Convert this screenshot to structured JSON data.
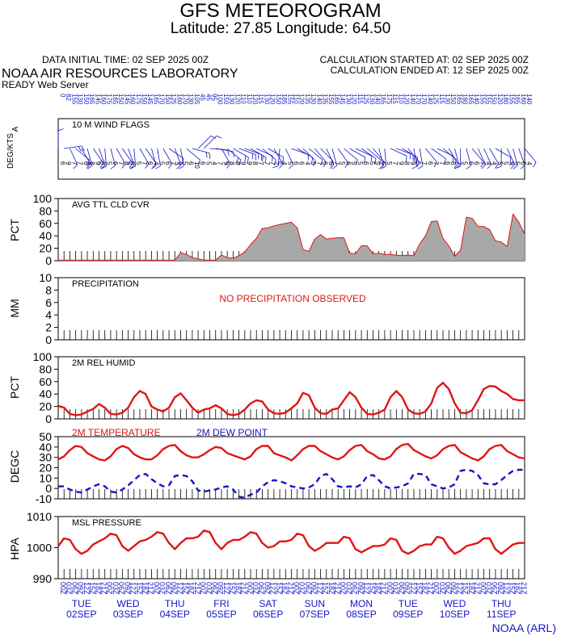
{
  "header": {
    "title": "GFS METEOROGRAM",
    "subtitle": "Latitude: 27.85 Longitude:  64.50",
    "init_time": "DATA INITIAL TIME: 02 SEP 2025 00Z",
    "calc_started": "CALCULATION STARTED AT: 02 SEP 2025 00Z",
    "calc_ended": "CALCULATION ENDED AT: 12 SEP 2025 00Z",
    "org": "NOAA AIR RESOURCES LABORATORY",
    "server": "READY Web Server",
    "credit": "NOAA (ARL)"
  },
  "colors": {
    "red": "#e01515",
    "blue": "#1515c8",
    "cloud_fill": "#a8a8a8"
  },
  "chart_data": [
    {
      "type": "line",
      "title": "10 M  WIND FLAGS",
      "ylabel": "DEG/KTS",
      "ylabel2": "A",
      "note": "wind barbs every 3 hours; top digits = direction, bottom digits = speed",
      "x_hours": [
        0,
        3,
        6,
        9,
        12,
        15,
        18,
        21,
        24,
        27,
        30,
        33,
        36,
        39,
        42,
        45,
        48,
        51,
        54,
        57,
        60,
        63,
        66,
        69,
        72,
        75,
        78,
        81,
        84,
        87,
        90,
        93,
        96,
        99,
        102,
        105,
        108,
        111,
        114,
        117,
        120,
        123,
        126,
        129,
        132,
        135,
        138,
        141,
        144,
        147,
        150,
        153,
        156,
        159,
        162,
        165,
        168,
        171,
        174,
        177,
        180,
        183,
        186,
        189,
        192,
        195,
        198,
        201,
        204,
        207,
        210,
        213,
        216,
        219,
        222,
        225,
        228,
        231,
        234,
        237,
        240
      ],
      "dir": [
        0,
        82,
        155,
        130,
        150,
        165,
        145,
        160,
        175,
        165,
        150,
        145,
        160,
        175,
        150,
        145,
        165,
        170,
        150,
        125,
        160,
        170,
        130,
        105,
        45,
        45,
        95,
        100,
        150,
        130,
        120,
        110,
        110,
        120,
        115,
        130,
        120,
        150,
        185,
        155,
        110,
        120,
        135,
        130,
        140,
        135,
        155,
        165,
        145,
        130,
        120,
        115,
        125,
        130,
        140,
        165,
        175,
        115,
        110,
        120,
        140,
        170,
        170,
        140,
        125,
        115,
        130,
        150,
        165,
        180,
        165,
        140,
        155,
        155,
        150,
        120,
        180,
        155,
        165,
        160,
        140
      ],
      "speed": [
        6,
        9,
        7,
        7,
        6,
        8,
        9,
        6,
        5,
        6,
        7,
        8,
        6,
        5,
        7,
        6,
        4,
        5,
        6,
        7,
        9,
        5,
        6,
        10,
        6,
        5,
        4,
        7,
        9,
        8,
        8,
        9,
        9,
        8,
        7,
        7,
        7,
        5,
        4,
        5,
        6,
        6,
        4,
        5,
        7,
        6,
        6,
        7,
        5,
        6,
        5,
        5,
        6,
        5,
        5,
        6,
        5,
        7,
        9,
        8,
        9,
        5,
        7,
        6,
        7,
        7,
        6,
        6,
        7,
        5,
        6,
        6,
        7,
        4,
        4,
        5,
        5,
        9,
        5,
        6,
        4
      ]
    },
    {
      "type": "area",
      "title": "AVG TTL CLD CVR",
      "ylabel": "PCT",
      "ylim": [
        0,
        100
      ],
      "yticks": [
        0,
        20,
        40,
        60,
        80,
        100
      ],
      "x_hours": [
        0,
        6,
        12,
        18,
        24,
        30,
        36,
        42,
        48,
        54,
        60,
        63,
        66,
        69,
        72,
        75,
        78,
        81,
        84,
        87,
        90,
        93,
        96,
        99,
        102,
        105,
        108,
        111,
        114,
        117,
        120,
        123,
        126,
        129,
        132,
        135,
        138,
        141,
        144,
        147,
        150,
        153,
        156,
        159,
        162,
        165,
        168,
        171,
        174,
        177,
        180,
        183,
        186,
        189,
        192,
        195,
        198,
        201,
        204,
        207,
        210,
        213,
        216,
        219,
        222,
        225,
        228,
        231,
        234,
        237,
        240
      ],
      "values": [
        1,
        1,
        1,
        1,
        1,
        1,
        1,
        1,
        1,
        1,
        1,
        13,
        10,
        5,
        3,
        1,
        1,
        1,
        9,
        5,
        4,
        8,
        14,
        26,
        36,
        52,
        53,
        56,
        58,
        60,
        62,
        53,
        18,
        15,
        35,
        42,
        35,
        36,
        37,
        37,
        12,
        11,
        24,
        24,
        11,
        12,
        10,
        10,
        9,
        8,
        9,
        8,
        27,
        40,
        63,
        64,
        36,
        24,
        7,
        17,
        70,
        68,
        55,
        55,
        50,
        32,
        30,
        23,
        75,
        62,
        43
      ]
    },
    {
      "type": "bar",
      "title": "PRECIPITATION",
      "ylabel": "MM",
      "ylim": [
        0,
        10
      ],
      "yticks": [
        0,
        2,
        4,
        6,
        8,
        10
      ],
      "annotation": "NO PRECIPITATION OBSERVED"
    },
    {
      "type": "line",
      "title": "2M REL HUMID",
      "ylabel": "PCT",
      "ylim": [
        0,
        100
      ],
      "yticks": [
        0,
        20,
        40,
        60,
        80,
        100
      ],
      "x_hours": [
        0,
        3,
        6,
        9,
        12,
        15,
        18,
        21,
        24,
        27,
        30,
        33,
        36,
        39,
        42,
        45,
        48,
        51,
        54,
        57,
        60,
        63,
        66,
        69,
        72,
        75,
        78,
        81,
        84,
        87,
        90,
        93,
        96,
        99,
        102,
        105,
        108,
        111,
        114,
        117,
        120,
        123,
        126,
        129,
        132,
        135,
        138,
        141,
        144,
        147,
        150,
        153,
        156,
        159,
        162,
        165,
        168,
        171,
        174,
        177,
        180,
        183,
        186,
        189,
        192,
        195,
        198,
        201,
        204,
        207,
        210,
        213,
        216,
        219,
        222,
        225,
        228,
        231,
        234,
        237,
        240
      ],
      "values": [
        21,
        18,
        8,
        6,
        7,
        12,
        16,
        24,
        18,
        8,
        7,
        10,
        18,
        35,
        45,
        40,
        20,
        15,
        12,
        18,
        35,
        41,
        30,
        18,
        10,
        15,
        17,
        22,
        17,
        8,
        6,
        8,
        15,
        25,
        30,
        28,
        15,
        9,
        8,
        10,
        17,
        25,
        42,
        38,
        18,
        9,
        8,
        15,
        17,
        30,
        43,
        35,
        18,
        8,
        7,
        10,
        15,
        35,
        45,
        35,
        15,
        9,
        8,
        12,
        25,
        50,
        58,
        48,
        25,
        10,
        9,
        14,
        30,
        48,
        53,
        52,
        45,
        40,
        32,
        30,
        30
      ]
    },
    {
      "type": "line",
      "title": "",
      "ylabel": "DEGC",
      "ylim": [
        -10,
        50
      ],
      "yticks": [
        -10,
        0,
        10,
        20,
        30,
        40,
        50
      ],
      "x_hours": [
        0,
        3,
        6,
        9,
        12,
        15,
        18,
        21,
        24,
        27,
        30,
        33,
        36,
        39,
        42,
        45,
        48,
        51,
        54,
        57,
        60,
        63,
        66,
        69,
        72,
        75,
        78,
        81,
        84,
        87,
        90,
        93,
        96,
        99,
        102,
        105,
        108,
        111,
        114,
        117,
        120,
        123,
        126,
        129,
        132,
        135,
        138,
        141,
        144,
        147,
        150,
        153,
        156,
        159,
        162,
        165,
        168,
        171,
        174,
        177,
        180,
        183,
        186,
        189,
        192,
        195,
        198,
        201,
        204,
        207,
        210,
        213,
        216,
        219,
        222,
        225,
        228,
        231,
        234,
        237,
        240
      ],
      "series": [
        {
          "name": "2M TEMPERATURE",
          "color": "#e01515",
          "style": "solid",
          "values": [
            28,
            31,
            37,
            41,
            40,
            34,
            31,
            28,
            27,
            31,
            38,
            41,
            39,
            33,
            30,
            28,
            28,
            32,
            38,
            41,
            42,
            36,
            32,
            30,
            30,
            33,
            37,
            40,
            39,
            34,
            32,
            30,
            28,
            31,
            38,
            41,
            41,
            34,
            32,
            30,
            27,
            32,
            38,
            41,
            41,
            36,
            33,
            30,
            28,
            31,
            37,
            41,
            42,
            36,
            33,
            29,
            28,
            31,
            38,
            42,
            43,
            37,
            34,
            31,
            29,
            32,
            38,
            41,
            42,
            35,
            32,
            29,
            27,
            31,
            38,
            41,
            42,
            36,
            33,
            30,
            29
          ]
        },
        {
          "name": "2M   DEW POINT",
          "color": "#1515c8",
          "style": "dashed",
          "values": [
            2,
            2,
            -1,
            -3,
            -4,
            -1,
            2,
            4,
            2,
            -3,
            -4,
            -1,
            3,
            8,
            13,
            14,
            9,
            5,
            2,
            3,
            12,
            13,
            12,
            7,
            -2,
            -3,
            -2,
            -1,
            1,
            2,
            -1,
            -8,
            -9,
            -6,
            -4,
            2,
            6,
            8,
            7,
            5,
            2,
            1,
            0,
            1,
            4,
            12,
            14,
            9,
            2,
            1,
            2,
            1,
            4,
            12,
            13,
            8,
            2,
            0,
            1,
            2,
            5,
            14,
            14,
            13,
            4,
            2,
            0,
            1,
            4,
            17,
            18,
            17,
            13,
            5,
            4,
            4,
            8,
            13,
            17,
            18,
            18
          ]
        }
      ]
    },
    {
      "type": "line",
      "title": "MSL PRESSURE",
      "ylabel": "HPA",
      "ylim": [
        990,
        1010
      ],
      "yticks": [
        990,
        1000,
        1010
      ],
      "x_hours": [
        0,
        3,
        6,
        9,
        12,
        15,
        18,
        21,
        24,
        27,
        30,
        33,
        36,
        39,
        42,
        45,
        48,
        51,
        54,
        57,
        60,
        63,
        66,
        69,
        72,
        75,
        78,
        81,
        84,
        87,
        90,
        93,
        96,
        99,
        102,
        105,
        108,
        111,
        114,
        117,
        120,
        123,
        126,
        129,
        132,
        135,
        138,
        141,
        144,
        147,
        150,
        153,
        156,
        159,
        162,
        165,
        168,
        171,
        174,
        177,
        180,
        183,
        186,
        189,
        192,
        195,
        198,
        201,
        204,
        207,
        210,
        213,
        216,
        219,
        222,
        225,
        228,
        231,
        234,
        237,
        240
      ],
      "values": [
        1000.5,
        1003,
        1002.5,
        999.5,
        998,
        999,
        1001,
        1002,
        1003,
        1004.5,
        1004,
        1000.5,
        999,
        1000.5,
        1002,
        1002.5,
        1003.5,
        1005,
        1004.5,
        1001.5,
        999.5,
        1001.5,
        1003,
        1003,
        1003.5,
        1005.5,
        1005,
        1001.5,
        999.5,
        1001.5,
        1002.5,
        1002.5,
        1003.5,
        1005,
        1004.5,
        1001.5,
        1000,
        1000.5,
        1002,
        1002,
        1002.5,
        1004.5,
        1004,
        1000.5,
        999,
        1000,
        1001.5,
        1001.5,
        1001.5,
        1003.5,
        1003,
        999.5,
        998.5,
        999.5,
        1000.5,
        1000.5,
        1001,
        1003,
        1002.5,
        999,
        998,
        999,
        1000.5,
        1001,
        1001,
        1003.5,
        1003,
        1000,
        998,
        999,
        1000.5,
        1001,
        1001.5,
        1003,
        1003,
        999.5,
        998,
        999.5,
        1001,
        1001.5,
        1001.5
      ]
    }
  ],
  "x_axis": {
    "hour_labels": [
      "00Z",
      "03Z",
      "06Z",
      "09Z",
      "12Z",
      "15Z",
      "18Z",
      "21Z"
    ],
    "days": [
      {
        "dow": "TUE",
        "date": "02SEP"
      },
      {
        "dow": "WED",
        "date": "03SEP"
      },
      {
        "dow": "THU",
        "date": "04SEP"
      },
      {
        "dow": "FRI",
        "date": "05SEP"
      },
      {
        "dow": "SAT",
        "date": "06SEP"
      },
      {
        "dow": "SUN",
        "date": "07SEP"
      },
      {
        "dow": "MON",
        "date": "08SEP"
      },
      {
        "dow": "TUE",
        "date": "09SEP"
      },
      {
        "dow": "WED",
        "date": "10SEP"
      },
      {
        "dow": "THU",
        "date": "11SEP"
      }
    ]
  }
}
